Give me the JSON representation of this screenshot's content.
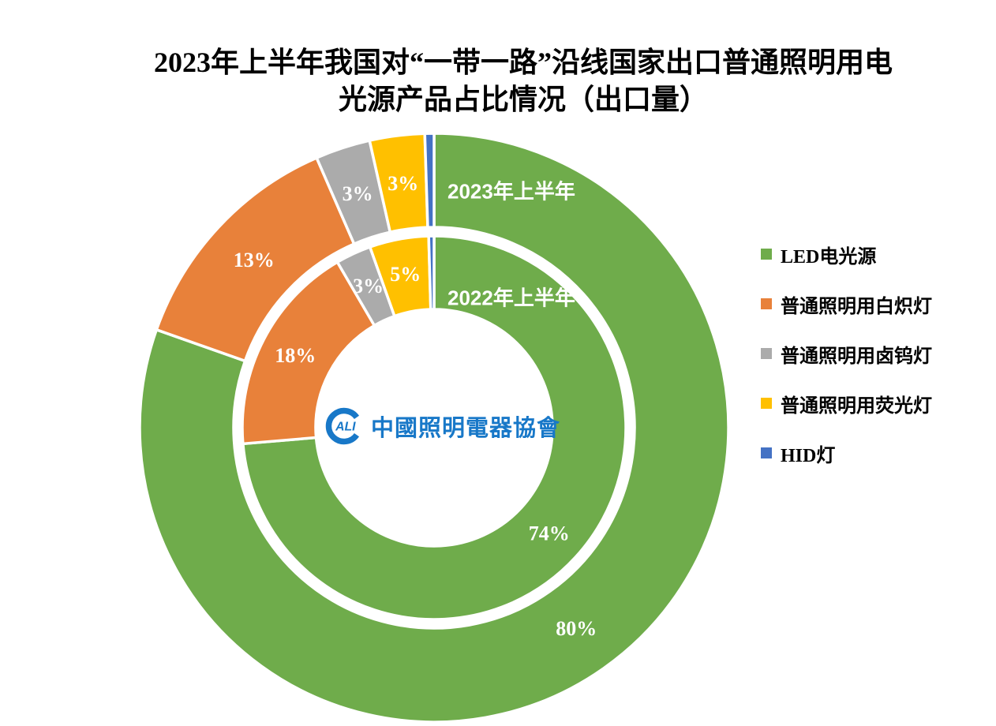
{
  "title": {
    "line1": "2023年上半年我国对“一带一路”沿线国家出口普通照明用电",
    "line2": "光源产品占比情况（出口量）"
  },
  "logo": {
    "mark": "ALI",
    "text": "中國照明電器協會",
    "color": "#1878C8"
  },
  "chart_data": {
    "type": "pie",
    "subtype": "double-ring-donut",
    "title": "2023年上半年我国对“一带一路”沿线国家出口普通照明用电光源产品占比情况（出口量）",
    "legend_position": "right",
    "direction": "clockwise",
    "start_angle_deg": 0,
    "categories": [
      "LED电光源",
      "普通照明用白炽灯",
      "普通照明用卤钨灯",
      "普通照明用荧光灯",
      "HID灯"
    ],
    "category_keys": [
      "led",
      "incandescent",
      "halogen",
      "fluorescent",
      "hid"
    ],
    "colors": [
      "#6FAC4B",
      "#E8813A",
      "#ABABAB",
      "#FFC000",
      "#4472C4"
    ],
    "slice_border_color": "#FFFFFF",
    "rings": [
      {
        "name": "2023年上半年",
        "position": "outer",
        "values": [
          80,
          13,
          3,
          3,
          0.5
        ],
        "labels": [
          "80%",
          "13%",
          "3%",
          "3%",
          ""
        ]
      },
      {
        "name": "2022年上半年",
        "position": "inner",
        "values": [
          74,
          18,
          3,
          5,
          0.45
        ],
        "labels": [
          "74%",
          "18%",
          "3%",
          "5%",
          ""
        ]
      }
    ]
  }
}
